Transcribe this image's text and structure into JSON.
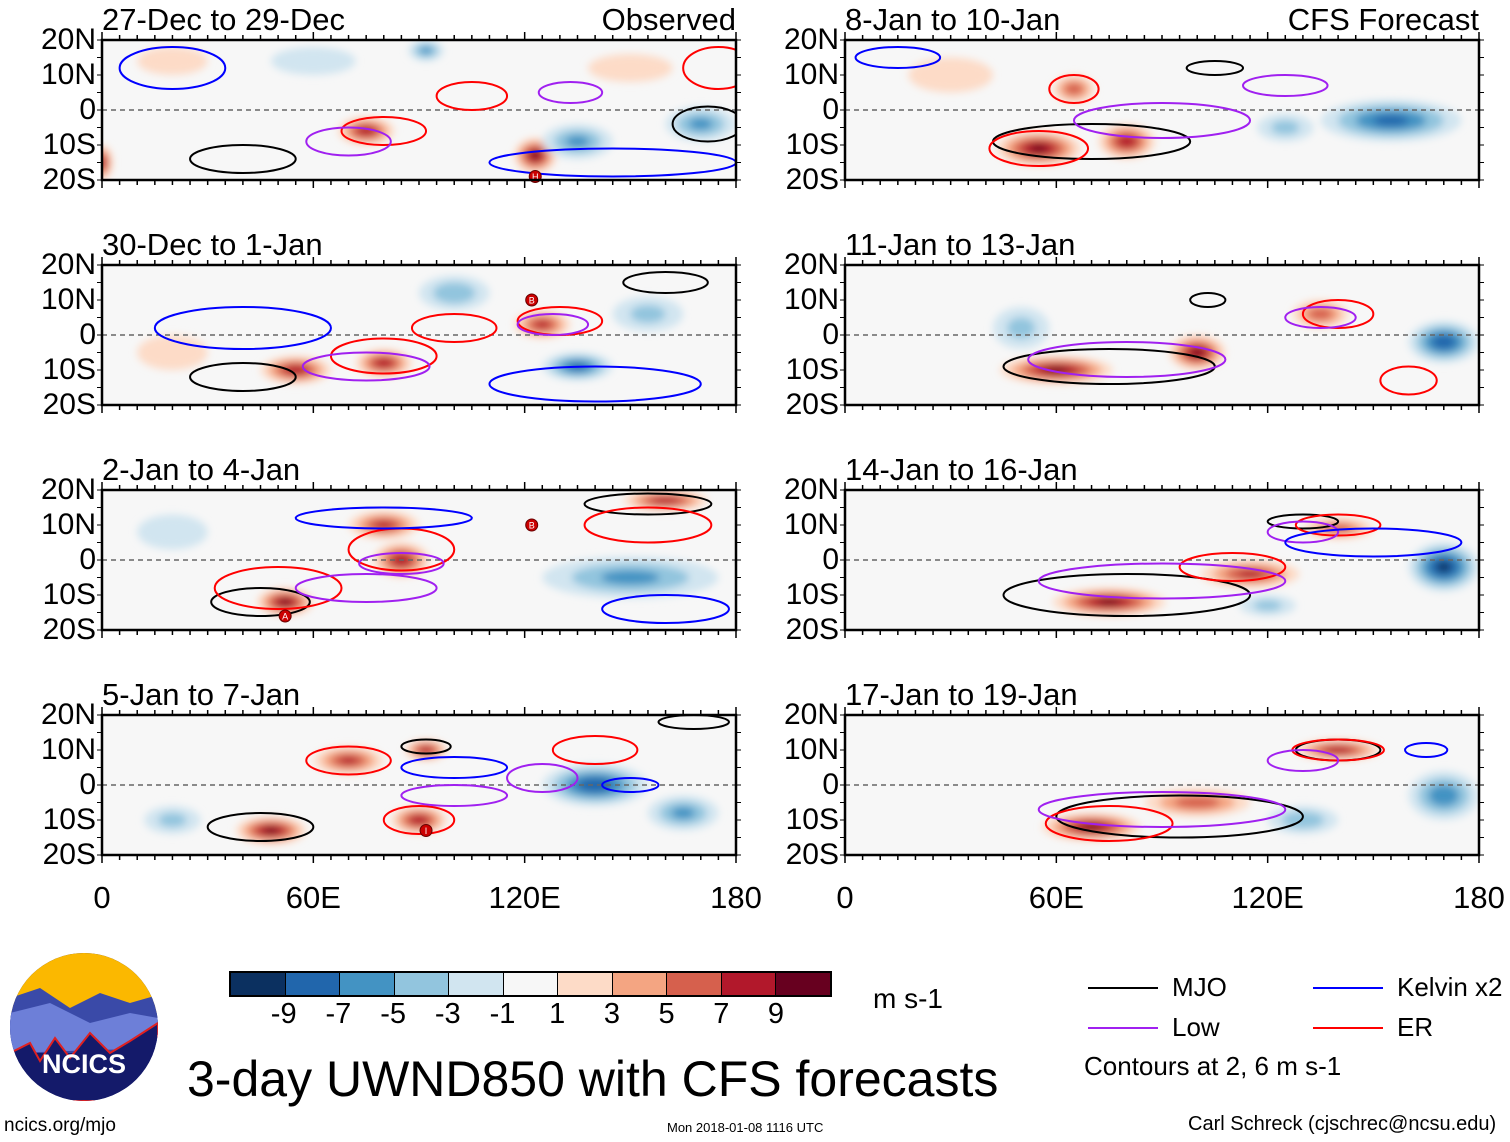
{
  "title": "3-day UWND850 with CFS forecasts",
  "logo_text": "NCICS",
  "url": "ncics.org/mjo",
  "timestamp": "Mon 2018-01-08 1116 UTC",
  "author": "Carl Schreck (cjschrec@ncsu.edu)",
  "lat_labels": [
    "20N",
    "10N",
    "0",
    "10S",
    "20S"
  ],
  "lon_labels": [
    "0",
    "60E",
    "120E",
    "180"
  ],
  "colorbar": {
    "unit": "m s-1",
    "labels": [
      "-9",
      "-7",
      "-5",
      "-3",
      "-1",
      "1",
      "3",
      "5",
      "7",
      "9"
    ],
    "colors": [
      "#0b3060",
      "#2166ac",
      "#4393c3",
      "#92c5de",
      "#d1e5f0",
      "#f7f7f7",
      "#fddbc7",
      "#f4a582",
      "#d6604d",
      "#b2182b",
      "#67001f"
    ]
  },
  "legend": {
    "items": [
      {
        "label": "MJO",
        "color": "#000000"
      },
      {
        "label": "Kelvin x2",
        "color": "#0000ff"
      },
      {
        "label": "Low",
        "color": "#a020f0"
      },
      {
        "label": "ER",
        "color": "#ff0000"
      }
    ],
    "note": "Contours at 2, 6 m s-1"
  },
  "panels": [
    {
      "title": "27-Dec to 29-Dec",
      "label": "Observed",
      "blobs": [
        [
          75,
          -6,
          8,
          4,
          8
        ],
        [
          123,
          -13,
          6,
          5,
          9
        ],
        [
          0,
          -15,
          3,
          5,
          8
        ],
        [
          135,
          -9,
          10,
          5,
          -5
        ],
        [
          170,
          -4,
          10,
          5,
          -5
        ],
        [
          92,
          17,
          5,
          3,
          -5
        ],
        [
          60,
          14,
          12,
          4,
          -2
        ],
        [
          20,
          14,
          10,
          4,
          2
        ],
        [
          150,
          12,
          12,
          4,
          2
        ]
      ],
      "contours": [
        [
          "MJO",
          40,
          -14,
          15,
          4
        ],
        [
          "MJO",
          172,
          -4,
          10,
          5
        ],
        [
          "ER",
          80,
          -6,
          12,
          4
        ],
        [
          "ER",
          105,
          4,
          10,
          4
        ],
        [
          "ER",
          175,
          12,
          10,
          6
        ],
        [
          "Low",
          70,
          -9,
          12,
          4
        ],
        [
          "Low",
          133,
          5,
          9,
          3
        ],
        [
          "Kelvin",
          145,
          -15,
          35,
          4
        ],
        [
          "Kelvin",
          20,
          12,
          15,
          6
        ]
      ],
      "markers": [
        [
          123,
          -19,
          "H"
        ]
      ]
    },
    {
      "title": "8-Jan to 10-Jan",
      "label": "CFS Forecast",
      "blobs": [
        [
          55,
          -11,
          12,
          5,
          9
        ],
        [
          80,
          -9,
          8,
          5,
          8
        ],
        [
          65,
          6,
          6,
          4,
          6
        ],
        [
          155,
          -3,
          20,
          6,
          -7
        ],
        [
          125,
          -5,
          8,
          4,
          -3
        ],
        [
          30,
          10,
          12,
          5,
          2
        ]
      ],
      "contours": [
        [
          "MJO",
          70,
          -9,
          28,
          5
        ],
        [
          "MJO",
          105,
          12,
          8,
          2
        ],
        [
          "ER",
          65,
          6,
          7,
          4
        ],
        [
          "ER",
          55,
          -11,
          14,
          5
        ],
        [
          "Low",
          90,
          -3,
          25,
          5
        ],
        [
          "Low",
          125,
          7,
          12,
          3
        ],
        [
          "Kelvin",
          15,
          15,
          12,
          3
        ]
      ],
      "markers": []
    },
    {
      "title": "30-Dec to 1-Jan",
      "label": "",
      "blobs": [
        [
          55,
          -10,
          10,
          4,
          8
        ],
        [
          80,
          -8,
          8,
          4,
          8
        ],
        [
          125,
          3,
          8,
          4,
          7
        ],
        [
          135,
          -9,
          10,
          4,
          -7
        ],
        [
          100,
          12,
          10,
          5,
          -4
        ],
        [
          155,
          6,
          10,
          5,
          -3
        ],
        [
          20,
          -5,
          10,
          5,
          2
        ]
      ],
      "contours": [
        [
          "MJO",
          40,
          -12,
          15,
          4
        ],
        [
          "MJO",
          160,
          15,
          12,
          3
        ],
        [
          "ER",
          80,
          -6,
          15,
          5
        ],
        [
          "ER",
          130,
          4,
          12,
          4
        ],
        [
          "ER",
          100,
          2,
          12,
          4
        ],
        [
          "Low",
          75,
          -9,
          18,
          4
        ],
        [
          "Low",
          128,
          3,
          10,
          3
        ],
        [
          "Kelvin",
          140,
          -14,
          30,
          5
        ],
        [
          "Kelvin",
          40,
          2,
          25,
          6
        ]
      ],
      "markers": [
        [
          122,
          10,
          "B"
        ]
      ]
    },
    {
      "title": "11-Jan to 13-Jan",
      "label": "",
      "blobs": [
        [
          60,
          -10,
          16,
          4,
          9
        ],
        [
          100,
          -5,
          8,
          5,
          9
        ],
        [
          135,
          6,
          8,
          4,
          6
        ],
        [
          170,
          -2,
          10,
          6,
          -8
        ],
        [
          50,
          2,
          8,
          6,
          -3
        ]
      ],
      "contours": [
        [
          "MJO",
          75,
          -9,
          30,
          5
        ],
        [
          "MJO",
          103,
          10,
          5,
          2
        ],
        [
          "ER",
          140,
          6,
          10,
          4
        ],
        [
          "ER",
          160,
          -13,
          8,
          4
        ],
        [
          "Low",
          80,
          -7,
          28,
          5
        ],
        [
          "Low",
          135,
          5,
          10,
          3
        ]
      ],
      "markers": []
    },
    {
      "title": "2-Jan to 4-Jan",
      "label": "",
      "blobs": [
        [
          52,
          -12,
          8,
          4,
          9
        ],
        [
          85,
          0,
          8,
          5,
          8
        ],
        [
          80,
          10,
          10,
          4,
          7
        ],
        [
          160,
          17,
          12,
          3,
          8
        ],
        [
          150,
          -5,
          25,
          6,
          -5
        ],
        [
          20,
          8,
          10,
          5,
          -2
        ]
      ],
      "contours": [
        [
          "MJO",
          45,
          -12,
          14,
          4
        ],
        [
          "MJO",
          155,
          16,
          18,
          3
        ],
        [
          "ER",
          85,
          3,
          15,
          6
        ],
        [
          "ER",
          50,
          -8,
          18,
          6
        ],
        [
          "ER",
          155,
          10,
          18,
          5
        ],
        [
          "Low",
          75,
          -8,
          20,
          4
        ],
        [
          "Low",
          85,
          -1,
          12,
          3
        ],
        [
          "Kelvin",
          80,
          12,
          25,
          3
        ],
        [
          "Kelvin",
          160,
          -14,
          18,
          4
        ]
      ],
      "markers": [
        [
          122,
          10,
          "B"
        ],
        [
          52,
          -16,
          "A"
        ]
      ]
    },
    {
      "title": "14-Jan to 16-Jan",
      "label": "",
      "blobs": [
        [
          75,
          -12,
          16,
          4,
          9
        ],
        [
          115,
          -4,
          14,
          4,
          7
        ],
        [
          140,
          9,
          10,
          3,
          6
        ],
        [
          170,
          -2,
          10,
          7,
          -9
        ],
        [
          120,
          -13,
          8,
          3,
          -3
        ]
      ],
      "contours": [
        [
          "MJO",
          80,
          -10,
          35,
          6
        ],
        [
          "MJO",
          130,
          11,
          10,
          2
        ],
        [
          "ER",
          140,
          10,
          12,
          3
        ],
        [
          "ER",
          110,
          -2,
          15,
          4
        ],
        [
          "Low",
          90,
          -6,
          35,
          5
        ],
        [
          "Low",
          130,
          8,
          10,
          3
        ],
        [
          "Kelvin",
          150,
          5,
          25,
          4
        ]
      ],
      "markers": []
    },
    {
      "title": "5-Jan to 7-Jan",
      "label": "",
      "blobs": [
        [
          48,
          -13,
          10,
          4,
          9
        ],
        [
          70,
          7,
          10,
          4,
          7
        ],
        [
          92,
          10,
          6,
          3,
          8
        ],
        [
          90,
          -10,
          8,
          4,
          8
        ],
        [
          140,
          0,
          15,
          6,
          -8
        ],
        [
          165,
          -8,
          10,
          5,
          -5
        ],
        [
          20,
          -10,
          8,
          4,
          -3
        ]
      ],
      "contours": [
        [
          "MJO",
          45,
          -12,
          15,
          4
        ],
        [
          "MJO",
          92,
          11,
          7,
          2
        ],
        [
          "MJO",
          168,
          18,
          10,
          2
        ],
        [
          "ER",
          70,
          7,
          12,
          4
        ],
        [
          "ER",
          90,
          -10,
          10,
          4
        ],
        [
          "ER",
          140,
          10,
          12,
          4
        ],
        [
          "Low",
          125,
          2,
          10,
          4
        ],
        [
          "Low",
          100,
          -3,
          15,
          3
        ],
        [
          "Kelvin",
          100,
          5,
          15,
          3
        ],
        [
          "Kelvin",
          150,
          0,
          8,
          2
        ]
      ],
      "markers": [
        [
          92,
          -13,
          "I"
        ]
      ]
    },
    {
      "title": "17-Jan to 19-Jan",
      "label": "",
      "blobs": [
        [
          70,
          -12,
          14,
          4,
          9
        ],
        [
          100,
          -5,
          15,
          4,
          6
        ],
        [
          140,
          10,
          12,
          3,
          8
        ],
        [
          170,
          -3,
          10,
          7,
          -6
        ],
        [
          130,
          -10,
          10,
          4,
          -4
        ]
      ],
      "contours": [
        [
          "MJO",
          95,
          -9,
          35,
          6
        ],
        [
          "MJO",
          140,
          10,
          12,
          3
        ],
        [
          "ER",
          140,
          10,
          13,
          3
        ],
        [
          "ER",
          75,
          -11,
          18,
          5
        ],
        [
          "Low",
          90,
          -7,
          35,
          5
        ],
        [
          "Low",
          130,
          7,
          10,
          3
        ],
        [
          "Kelvin",
          165,
          10,
          6,
          2
        ]
      ],
      "markers": []
    }
  ]
}
